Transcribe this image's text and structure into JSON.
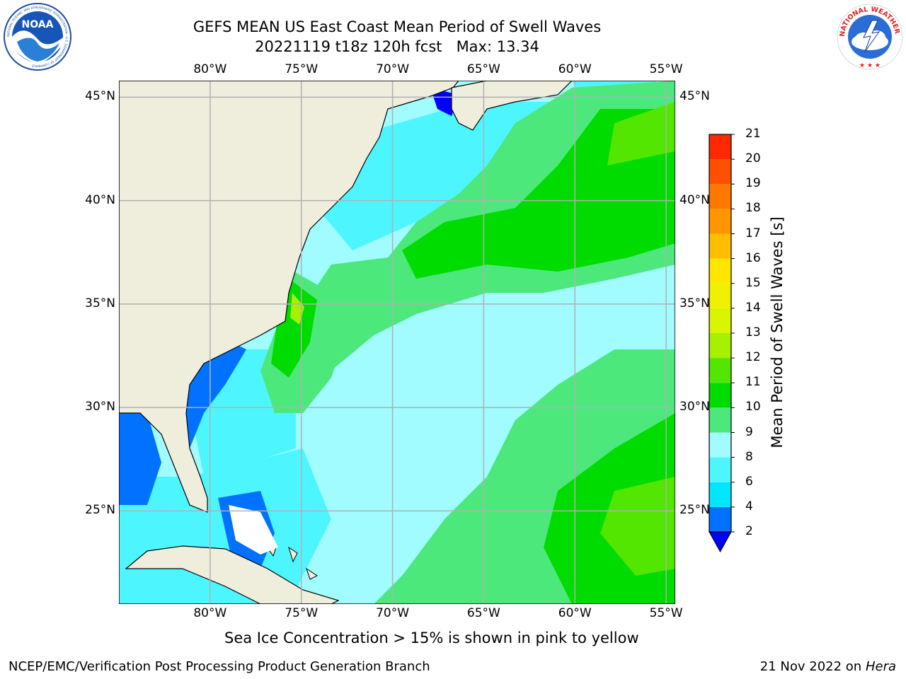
{
  "title": {
    "line1": "GEFS MEAN US East Coast Mean Period of Swell Waves",
    "date_run": "20221119 t18z 120h fcst",
    "max_label": "Max: 13.34"
  },
  "logos": {
    "left": "noaa-logo",
    "left_text": "NOAA",
    "left_ring": "NATIONAL OCEANIC AND ATMOSPHERIC ADMINISTRATION · U.S. DEPARTMENT OF COMMERCE",
    "right": "national-weather-service-logo",
    "right_ring": "NATIONAL WEATHER SERVICE"
  },
  "map": {
    "longitude_labels": [
      "80°W",
      "75°W",
      "70°W",
      "65°W",
      "60°W",
      "55°W"
    ],
    "longitudes": [
      -80,
      -75,
      -70,
      -65,
      -60,
      -55
    ],
    "latitude_labels": [
      "45°N",
      "40°N",
      "35°N",
      "30°N",
      "25°N"
    ],
    "latitudes": [
      45,
      40,
      35,
      30,
      25
    ],
    "lon_range": [
      -85,
      -54.5
    ],
    "lat_range": [
      20.5,
      45.8
    ],
    "land_color": "#efeedd",
    "grid_color": "#b0b0b0"
  },
  "colorbar": {
    "title": "Mean Period of Swell Waves [s]",
    "ticks": [
      "2",
      "4",
      "6",
      "8",
      "9",
      "10",
      "11",
      "12",
      "13",
      "14",
      "15",
      "16",
      "17",
      "18",
      "19",
      "20",
      "21"
    ],
    "colors": [
      "#0072ff",
      "#00e6ff",
      "#4df6ff",
      "#a0fcff",
      "#4de87c",
      "#00dc00",
      "#52e600",
      "#a6f000",
      "#d8f600",
      "#f0f000",
      "#ffe600",
      "#ffbe00",
      "#ff9600",
      "#ff7800",
      "#ff5000",
      "#ff2800",
      "#ff0000"
    ],
    "under_color": "#0000ff"
  },
  "note": "Sea Ice Concentration > 15% is shown in pink to yellow",
  "footer": {
    "left": "NCEP/EMC/Verification Post Processing Product Generation Branch",
    "date": "21 Nov 2022 on",
    "machine": "Hera"
  }
}
